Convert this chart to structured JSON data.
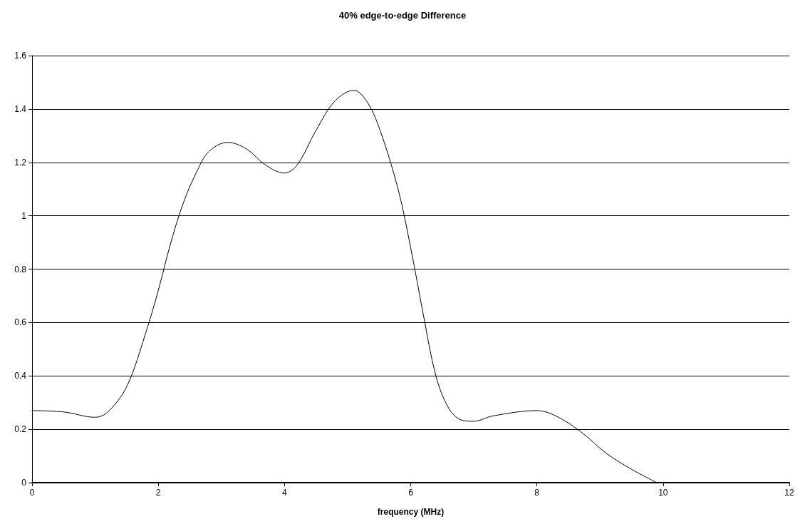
{
  "chart_data": {
    "type": "line",
    "title": "40% edge-to-edge Difference",
    "xlabel": "frequency (MHz)",
    "xlim": [
      0,
      12
    ],
    "xticks": [
      0,
      2,
      4,
      6,
      8,
      10,
      12
    ],
    "ylim": [
      0,
      1.6
    ],
    "yticks": [
      0,
      0.2,
      0.4,
      0.6,
      0.8,
      1,
      1.2,
      1.4,
      1.6
    ],
    "grid": "y",
    "marker": "none",
    "line_style": "solid",
    "series": [
      {
        "color": "#000000",
        "x": [
          0,
          0.5,
          1,
          1.2,
          1.5,
          1.8,
          2,
          2.2,
          2.4,
          2.6,
          2.8,
          3.1,
          3.4,
          3.7,
          4,
          4.2,
          4.5,
          4.8,
          5.1,
          5.3,
          5.5,
          5.8,
          6,
          6.2,
          6.4,
          6.6,
          6.8,
          7,
          7.3,
          8,
          8.3,
          8.7,
          9.1,
          9.5,
          9.9
        ],
        "values": [
          0.27,
          0.265,
          0.245,
          0.265,
          0.36,
          0.56,
          0.72,
          0.9,
          1.05,
          1.16,
          1.24,
          1.275,
          1.25,
          1.19,
          1.16,
          1.19,
          1.32,
          1.43,
          1.47,
          1.43,
          1.33,
          1.1,
          0.88,
          0.63,
          0.4,
          0.28,
          0.235,
          0.23,
          0.25,
          0.27,
          0.25,
          0.19,
          0.11,
          0.05,
          0
        ]
      }
    ]
  }
}
